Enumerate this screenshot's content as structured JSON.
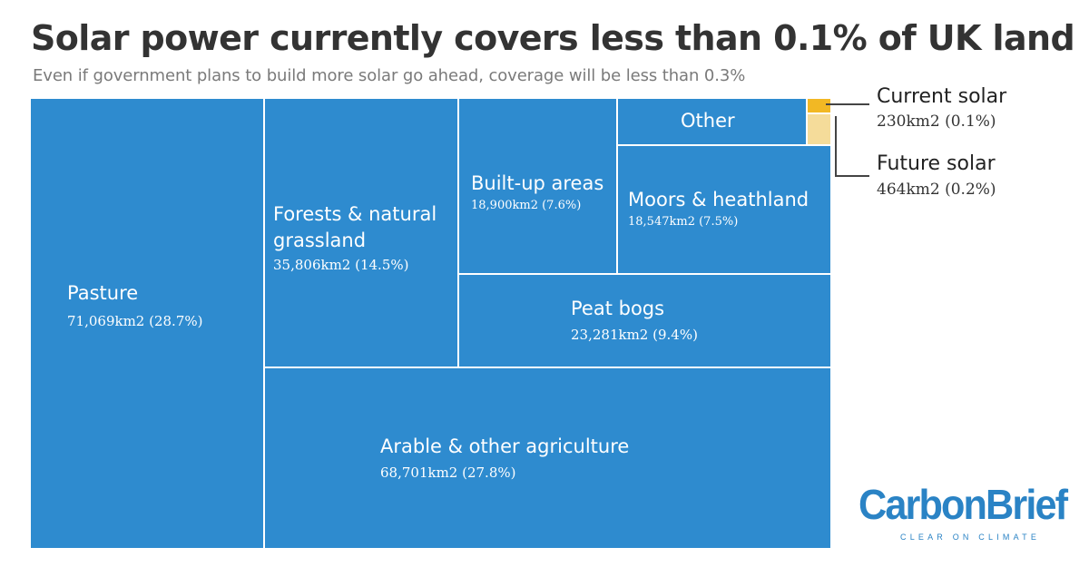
{
  "chart_data": {
    "type": "treemap",
    "title": "Solar power currently covers less than 0.1% of UK land",
    "subtitle": "Even if government plans to build more solar go ahead, coverage will be less than 0.3%",
    "units": "km2",
    "tiles": [
      {
        "id": "pasture",
        "label": "Pasture",
        "value": 71069,
        "percent": 28.7,
        "value_text": "71,069km2 (28.7%)"
      },
      {
        "id": "arable",
        "label": "Arable & other agriculture",
        "value": 68701,
        "percent": 27.8,
        "value_text": "68,701km2 (27.8%)"
      },
      {
        "id": "forests",
        "label_lines": [
          "Forests & natural",
          "grassland"
        ],
        "value": 35806,
        "percent": 14.5,
        "value_text": "35,806km2 (14.5%)"
      },
      {
        "id": "peat",
        "label": "Peat bogs",
        "value": 23281,
        "percent": 9.4,
        "value_text": "23,281km2 (9.4%)"
      },
      {
        "id": "builtup",
        "label": "Built-up areas",
        "value": 18900,
        "percent": 7.6,
        "value_text": "18,900km2 (7.6%)"
      },
      {
        "id": "moors",
        "label": "Moors & heathland",
        "value": 18547,
        "percent": 7.5,
        "value_text": "18,547km2 (7.5%)"
      },
      {
        "id": "other",
        "label": "Other"
      },
      {
        "id": "current_solar",
        "label": "Current solar",
        "value": 230,
        "percent": 0.1,
        "value_text": "230km2 (0.1%)"
      },
      {
        "id": "future_solar",
        "label": "Future solar",
        "value": 464,
        "percent": 0.2,
        "value_text": "464km2 (0.2%)"
      }
    ]
  },
  "colors": {
    "land": "#2e8bcf",
    "current_solar": "#f2b824",
    "future_solar": "#f5dc9a",
    "brand": "#2a83c5"
  },
  "logo": {
    "name": "CarbonBrief",
    "tagline": "CLEAR ON CLIMATE"
  }
}
